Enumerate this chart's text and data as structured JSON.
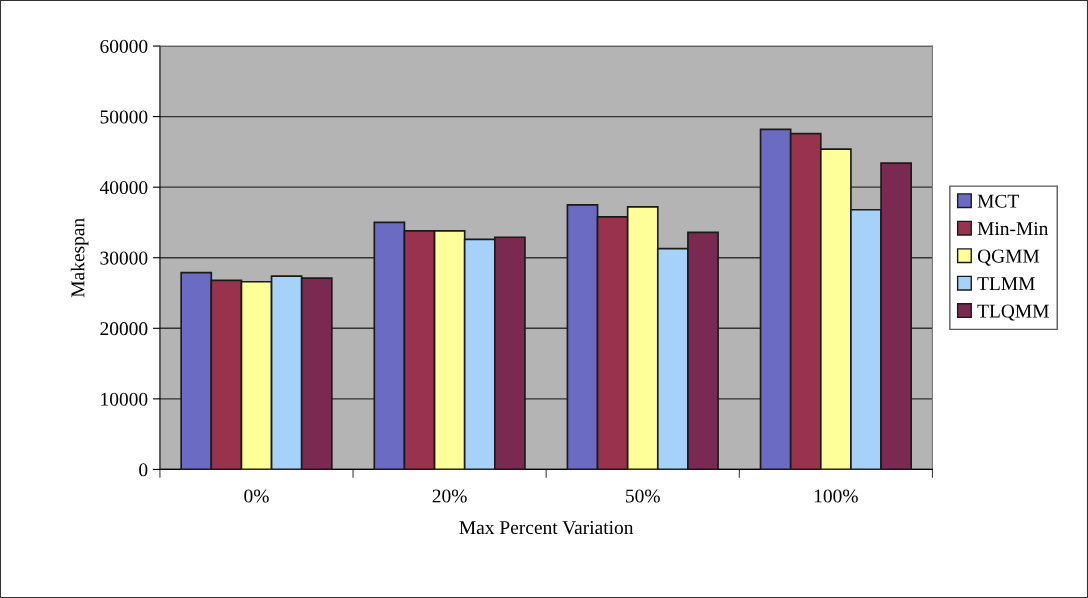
{
  "chart_data": {
    "type": "bar",
    "xlabel": "Max Percent Variation",
    "ylabel": "Makespan",
    "categories": [
      "0%",
      "20%",
      "50%",
      "100%"
    ],
    "series": [
      {
        "name": "MCT",
        "color": "#6b6bc4",
        "values": [
          27900,
          35000,
          37500,
          48200
        ]
      },
      {
        "name": "Min-Min",
        "color": "#99334d",
        "values": [
          26800,
          33800,
          35800,
          47600
        ]
      },
      {
        "name": "QGMM",
        "color": "#ffff99",
        "values": [
          26600,
          33800,
          37200,
          45400
        ]
      },
      {
        "name": "TLMM",
        "color": "#a6d2fa",
        "values": [
          27400,
          32600,
          31300,
          36800
        ]
      },
      {
        "name": "TLQMM",
        "color": "#7a2a50",
        "values": [
          27100,
          32900,
          33600,
          43400
        ]
      }
    ],
    "ylim": [
      0,
      60000
    ],
    "yticks": [
      0,
      10000,
      20000,
      30000,
      40000,
      50000,
      60000
    ],
    "grid": "y",
    "legend": "right"
  }
}
